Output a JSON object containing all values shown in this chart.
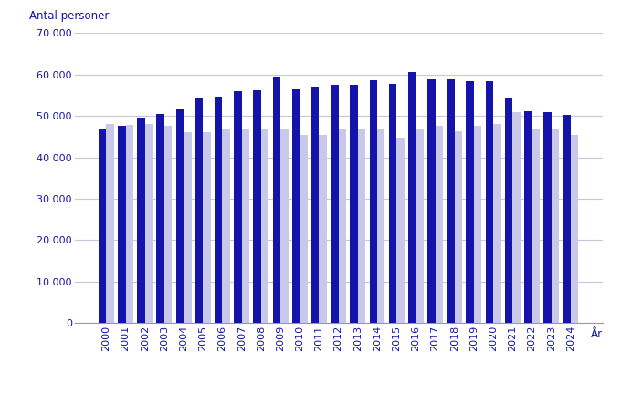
{
  "years": [
    2000,
    2001,
    2002,
    2003,
    2004,
    2005,
    2006,
    2007,
    2008,
    2009,
    2010,
    2011,
    2012,
    2013,
    2014,
    2015,
    2016,
    2017,
    2018,
    2019,
    2020,
    2021,
    2022,
    2023,
    2024
  ],
  "fodda": [
    47000,
    47500,
    49500,
    50500,
    51500,
    54500,
    54700,
    56000,
    56200,
    59500,
    56500,
    57000,
    57500,
    57500,
    58700,
    57700,
    60500,
    58800,
    58800,
    58500,
    58500,
    54500,
    51200,
    50800,
    50300
  ],
  "doda": [
    48000,
    47800,
    48000,
    47700,
    46000,
    46000,
    46800,
    46800,
    47000,
    47000,
    45500,
    45500,
    47000,
    46800,
    47000,
    44700,
    46700,
    47500,
    46200,
    47700,
    48000,
    51000,
    47000,
    47000,
    45500
  ],
  "fodda_color": "#1414AA",
  "doda_color": "#C8C8E8",
  "ylabel": "Antal personer",
  "xlabel": "År",
  "ylim": [
    0,
    70000
  ],
  "yticks": [
    0,
    10000,
    20000,
    30000,
    40000,
    50000,
    60000,
    70000
  ],
  "ytick_labels": [
    "0",
    "10 000",
    "20 000",
    "30 000",
    "40 000",
    "50 000",
    "60 000",
    "70 000"
  ],
  "background_color": "#ffffff",
  "grid_color": "#C8C8DC",
  "text_color": "#1414AA",
  "bar_width": 0.4
}
